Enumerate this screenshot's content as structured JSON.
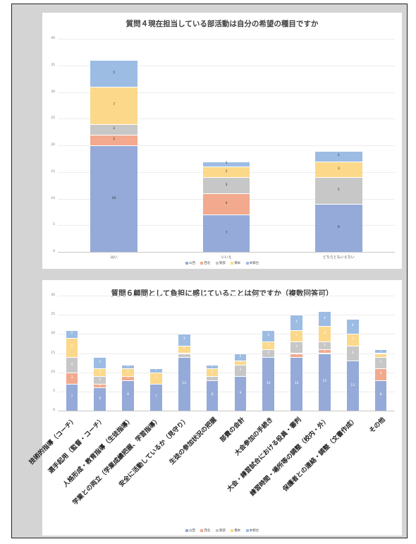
{
  "colors": {
    "山西": "#95aad8",
    "西北": "#f2a98d",
    "東部": "#c7c7c7",
    "橋本": "#fcd88a",
    "本郷台": "#9cbce4"
  },
  "legend": [
    "山西",
    "西北",
    "東部",
    "橋本",
    "本郷台"
  ],
  "chart_data": [
    {
      "type": "bar",
      "title": "質問４現在担当している部活動は自分の希望の種目ですか",
      "categories": [
        "はい",
        "いいえ",
        "どちらともいえない"
      ],
      "ylim": [
        0,
        40
      ],
      "yticks": [
        0,
        5,
        10,
        15,
        20,
        25,
        30,
        35,
        40
      ],
      "series": [
        {
          "name": "山西",
          "values": [
            20,
            7,
            9
          ]
        },
        {
          "name": "西北",
          "values": [
            2,
            4,
            0
          ]
        },
        {
          "name": "東部",
          "values": [
            2,
            3,
            5
          ]
        },
        {
          "name": "橋本",
          "values": [
            7,
            2,
            3
          ]
        },
        {
          "name": "本郷台",
          "values": [
            5,
            1,
            2
          ]
        }
      ],
      "legend_position": "bottom"
    },
    {
      "type": "bar",
      "title": "質問６顧問として負担に感じていることは何ですか（複数回答可）",
      "categories": [
        "技術的指導（コーチ）",
        "選手起用（監督・コーチ）",
        "人格形成・教育指導（生徒指導）",
        "学業との両立（学業成績把握、学習指導）",
        "安全に活動しているか（見守り）",
        "生徒の参加状況の把握",
        "部費の会計",
        "大会参加の手続き",
        "大会・練習試合における役員・審判",
        "練習時間・場所等の調整（校内・外）",
        "保護者との連絡・調整（文書作成）",
        "その他"
      ],
      "ylim": [
        0,
        30
      ],
      "yticks": [
        0,
        5,
        10,
        15,
        20,
        25,
        30
      ],
      "series": [
        {
          "name": "山西",
          "values": [
            7,
            6,
            8,
            7,
            14,
            8,
            9,
            14,
            14,
            15,
            13,
            8
          ]
        },
        {
          "name": "西北",
          "values": [
            3,
            1,
            1,
            0,
            0,
            0,
            0,
            0,
            1,
            1,
            0,
            3
          ]
        },
        {
          "name": "東部",
          "values": [
            4,
            2,
            0,
            0,
            1,
            1,
            3,
            2,
            3,
            2,
            4,
            3
          ]
        },
        {
          "name": "橋本",
          "values": [
            5,
            2,
            2,
            3,
            2,
            2,
            1,
            2,
            3,
            4,
            3,
            1
          ]
        },
        {
          "name": "本郷台",
          "values": [
            2,
            3,
            1,
            1,
            3,
            1,
            2,
            3,
            4,
            4,
            4,
            1
          ]
        }
      ],
      "legend_position": "bottom"
    }
  ]
}
